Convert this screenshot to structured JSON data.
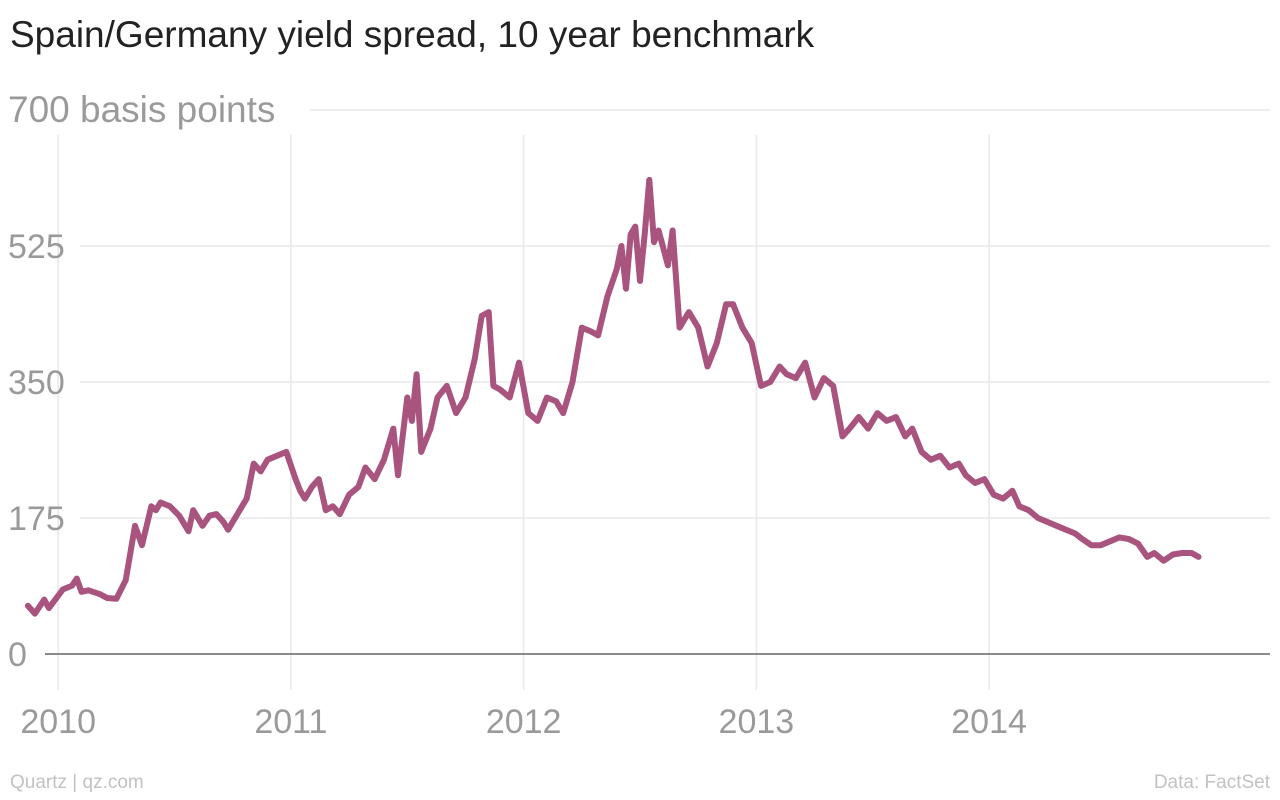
{
  "header": {
    "title": "Spain/Germany yield spread, 10 year benchmark"
  },
  "footer": {
    "source_left": "Quartz | qz.com",
    "source_right": "Data: FactSet"
  },
  "chart_data": {
    "type": "line",
    "title": "Spain/Germany yield spread, 10 year benchmark",
    "ylabel": "basis points",
    "y_unit_label": "700 basis points",
    "ylim": [
      0,
      700
    ],
    "yticks": [
      0,
      175,
      350,
      525,
      700
    ],
    "ytick_labels": [
      "0",
      "175",
      "350",
      "525",
      "700"
    ],
    "xlim": [
      2009.75,
      2015.25
    ],
    "xticks": [
      2010,
      2011,
      2012,
      2013,
      2014
    ],
    "xtick_labels": [
      "2010",
      "2011",
      "2012",
      "2013",
      "2014"
    ],
    "grid": true,
    "color": "#a9547f",
    "series": [
      {
        "x": [
          2009.87,
          2009.9,
          2009.94,
          2009.96,
          2010.02,
          2010.06,
          2010.08,
          2010.1,
          2010.13,
          2010.18,
          2010.21,
          2010.25,
          2010.29,
          2010.33,
          2010.36,
          2010.4,
          2010.42,
          2010.44,
          2010.48,
          2010.52,
          2010.56,
          2010.58,
          2010.62,
          2010.65,
          2010.68,
          2010.71,
          2010.73,
          2010.77,
          2010.81,
          2010.84,
          2010.87,
          2010.9,
          2010.94,
          2010.98,
          2011.02,
          2011.04,
          2011.06,
          2011.09,
          2011.12,
          2011.15,
          2011.18,
          2011.21,
          2011.25,
          2011.29,
          2011.32,
          2011.36,
          2011.4,
          2011.44,
          2011.46,
          2011.5,
          2011.52,
          2011.54,
          2011.56,
          2011.6,
          2011.63,
          2011.67,
          2011.71,
          2011.75,
          2011.79,
          2011.82,
          2011.85,
          2011.87,
          2011.9,
          2011.94,
          2011.98,
          2012.02,
          2012.06,
          2012.1,
          2012.14,
          2012.17,
          2012.21,
          2012.25,
          2012.29,
          2012.32,
          2012.36,
          2012.4,
          2012.42,
          2012.44,
          2012.46,
          2012.48,
          2012.5,
          2012.52,
          2012.54,
          2012.56,
          2012.58,
          2012.62,
          2012.64,
          2012.67,
          2012.71,
          2012.75,
          2012.79,
          2012.83,
          2012.87,
          2012.9,
          2012.94,
          2012.98,
          2013.02,
          2013.06,
          2013.1,
          2013.13,
          2013.17,
          2013.21,
          2013.25,
          2013.29,
          2013.33,
          2013.37,
          2013.4,
          2013.44,
          2013.48,
          2013.52,
          2013.56,
          2013.6,
          2013.64,
          2013.67,
          2013.71,
          2013.75,
          2013.79,
          2013.83,
          2013.87,
          2013.9,
          2013.94,
          2013.98,
          2014.02,
          2014.06,
          2014.1,
          2014.13,
          2014.17,
          2014.21,
          2014.25,
          2014.29,
          2014.33,
          2014.37,
          2014.4,
          2014.44,
          2014.48,
          2014.52,
          2014.56,
          2014.6,
          2014.64,
          2014.68,
          2014.71,
          2014.75,
          2014.79,
          2014.83,
          2014.87,
          2014.9
        ],
        "y": [
          62,
          52,
          70,
          59,
          83,
          88,
          97,
          80,
          82,
          77,
          72,
          71,
          95,
          165,
          140,
          190,
          185,
          195,
          190,
          178,
          158,
          185,
          165,
          178,
          180,
          170,
          160,
          180,
          200,
          245,
          235,
          250,
          255,
          260,
          225,
          210,
          200,
          215,
          225,
          185,
          190,
          180,
          205,
          215,
          240,
          225,
          250,
          290,
          230,
          330,
          300,
          360,
          260,
          290,
          330,
          345,
          310,
          330,
          380,
          435,
          440,
          345,
          340,
          330,
          375,
          310,
          300,
          330,
          325,
          310,
          350,
          420,
          415,
          410,
          460,
          495,
          525,
          470,
          540,
          550,
          480,
          540,
          610,
          530,
          545,
          500,
          545,
          420,
          440,
          420,
          370,
          400,
          450,
          450,
          420,
          400,
          345,
          350,
          370,
          360,
          355,
          375,
          330,
          355,
          345,
          280,
          290,
          305,
          290,
          310,
          300,
          305,
          280,
          290,
          260,
          250,
          255,
          240,
          245,
          230,
          220,
          225,
          205,
          200,
          210,
          190,
          185,
          175,
          170,
          165,
          160,
          155,
          148,
          140,
          140,
          145,
          150,
          148,
          142,
          125,
          130,
          120,
          128,
          130,
          130,
          125
        ]
      }
    ]
  }
}
